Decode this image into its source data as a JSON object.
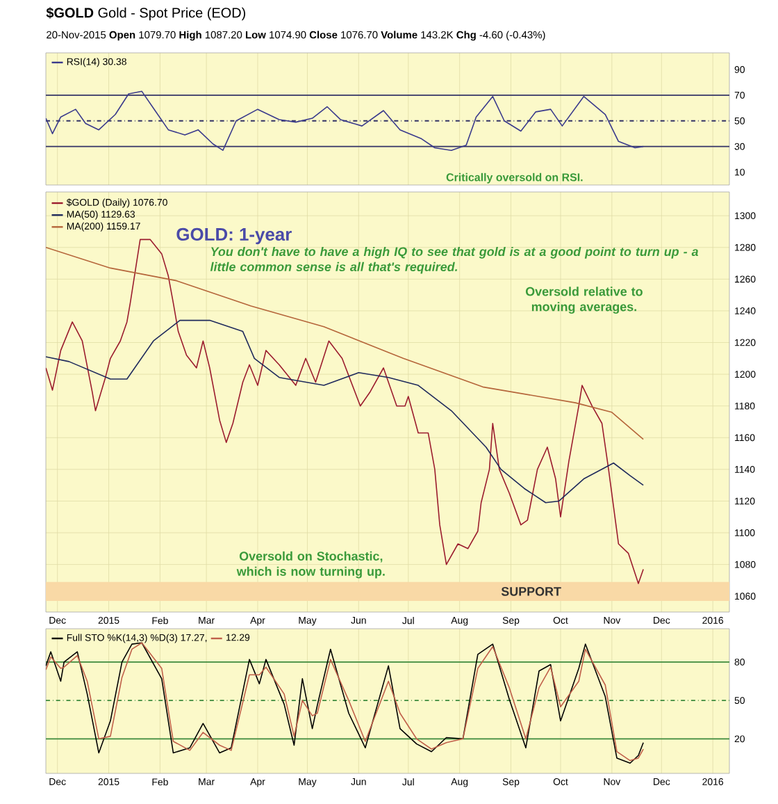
{
  "chart_data": [
    {
      "type": "line",
      "title": "**$GOLD** Gold - Spot Price (EOD)",
      "subtitle": "20-Nov-2015 **Open** 1079.70 **High** 1087.20 **Low** 1074.90 **Close** 1076.70 **Volume** 143.2K **Chg** -4.60 (-0.43%)",
      "xlim": [
        "2014-11-24",
        "2016-01-11"
      ],
      "ylim": [
        0,
        103
      ],
      "yticks": [
        10,
        30,
        50,
        70,
        90
      ],
      "xticks": [
        {
          "value": "2014-12-01",
          "label": null
        },
        {
          "value": "2015-01-01",
          "label": null
        },
        {
          "value": "2015-02-01",
          "label": null
        },
        {
          "value": "2015-03-01",
          "label": null
        },
        {
          "value": "2015-04-01",
          "label": null
        },
        {
          "value": "2015-05-01",
          "label": null
        },
        {
          "value": "2015-06-01",
          "label": null
        },
        {
          "value": "2015-07-01",
          "label": null
        },
        {
          "value": "2015-08-01",
          "label": null
        },
        {
          "value": "2015-09-01",
          "label": null
        },
        {
          "value": "2015-10-01",
          "label": null
        },
        {
          "value": "2015-11-01",
          "label": null
        },
        {
          "value": "2015-12-01",
          "label": null
        },
        {
          "value": "2016-01-01",
          "label": null
        }
      ],
      "tick_labels": "y",
      "grid": "x",
      "legend": "top left",
      "ref_lines": [
        {
          "axis": "y",
          "value": 70,
          "color": "#333366",
          "line_style": "solid"
        },
        {
          "axis": "y",
          "value": 30,
          "color": "#333366",
          "line_style": "solid"
        },
        {
          "axis": "y",
          "value": 50,
          "color": "#333366",
          "line_style": "dashed"
        }
      ],
      "annotations": [
        "Critically oversold on RSI."
      ],
      "series": [
        {
          "name": "RSI(14) 30.38",
          "color": "#3a3a8c",
          "x": [
            "2014-11-24",
            "2014-11-28",
            "2014-12-03",
            "2014-12-12",
            "2014-12-18",
            "2014-12-26",
            "2015-01-05",
            "2015-01-13",
            "2015-01-21",
            "2015-01-29",
            "2015-02-06",
            "2015-02-16",
            "2015-02-24",
            "2015-03-05",
            "2015-03-11",
            "2015-03-19",
            "2015-04-01",
            "2015-04-14",
            "2015-04-24",
            "2015-05-04",
            "2015-05-13",
            "2015-05-21",
            "2015-06-03",
            "2015-06-16",
            "2015-06-26",
            "2015-07-09",
            "2015-07-17",
            "2015-07-27",
            "2015-08-05",
            "2015-08-11",
            "2015-08-21",
            "2015-08-28",
            "2015-09-07",
            "2015-09-16",
            "2015-09-25",
            "2015-10-02",
            "2015-10-15",
            "2015-10-28",
            "2015-11-05",
            "2015-11-15",
            "2015-11-20"
          ],
          "values": [
            52,
            40,
            53,
            59,
            48,
            43,
            55,
            71,
            73,
            58,
            43,
            39,
            43,
            32,
            27,
            50,
            59,
            51,
            49,
            52,
            61,
            51,
            46,
            58,
            43,
            36,
            29,
            27,
            31,
            53,
            69,
            50,
            42,
            57,
            59,
            46,
            69,
            55,
            34,
            29,
            30
          ]
        }
      ]
    },
    {
      "type": "line",
      "xlim": [
        "2014-11-24",
        "2016-01-11"
      ],
      "ylim": [
        1050,
        1315
      ],
      "yticks": [
        1060,
        1080,
        1100,
        1120,
        1140,
        1160,
        1180,
        1200,
        1220,
        1240,
        1260,
        1280,
        1300
      ],
      "xticks": [
        {
          "value": "2014-12-01",
          "label": "Dec"
        },
        {
          "value": "2015-01-01",
          "label": "2015"
        },
        {
          "value": "2015-02-01",
          "label": "Feb"
        },
        {
          "value": "2015-03-01",
          "label": "Mar"
        },
        {
          "value": "2015-04-01",
          "label": "Apr"
        },
        {
          "value": "2015-05-01",
          "label": "May"
        },
        {
          "value": "2015-06-01",
          "label": "Jun"
        },
        {
          "value": "2015-07-01",
          "label": "Jul"
        },
        {
          "value": "2015-08-01",
          "label": "Aug"
        },
        {
          "value": "2015-09-01",
          "label": "Sep"
        },
        {
          "value": "2015-10-01",
          "label": "Oct"
        },
        {
          "value": "2015-11-01",
          "label": "Nov"
        },
        {
          "value": "2015-12-01",
          "label": "Dec"
        },
        {
          "value": "2016-01-01",
          "label": "2016"
        }
      ],
      "grid": true,
      "legend": "top left",
      "bands": [
        {
          "axis": "y",
          "from": 1057,
          "to": 1069,
          "label": "SUPPORT",
          "color": "#f9d9a6"
        }
      ],
      "annotations": [
        "GOLD: 1-year",
        "You don't have to have a high IQ to see that gold is at a good point to turn up - a little common sense is all that's required.",
        "Oversold relative to moving averages.",
        "Oversold on Stochastic, which is now turning up."
      ],
      "series": [
        {
          "name": "$GOLD (Daily) 1076.70",
          "color": "#9b1c2e",
          "x": [
            "2014-11-24",
            "2014-11-28",
            "2014-12-03",
            "2014-12-10",
            "2014-12-16",
            "2014-12-22",
            "2014-12-24",
            "2014-12-30",
            "2015-01-02",
            "2015-01-08",
            "2015-01-12",
            "2015-01-14",
            "2015-01-20",
            "2015-01-26",
            "2015-02-02",
            "2015-02-06",
            "2015-02-09",
            "2015-02-12",
            "2015-02-17",
            "2015-02-23",
            "2015-02-27",
            "2015-03-03",
            "2015-03-09",
            "2015-03-13",
            "2015-03-17",
            "2015-03-23",
            "2015-03-27",
            "2015-04-01",
            "2015-04-06",
            "2015-04-14",
            "2015-04-24",
            "2015-04-30",
            "2015-05-06",
            "2015-05-14",
            "2015-05-22",
            "2015-06-02",
            "2015-06-08",
            "2015-06-16",
            "2015-06-24",
            "2015-06-29",
            "2015-07-01",
            "2015-07-07",
            "2015-07-13",
            "2015-07-17",
            "2015-07-20",
            "2015-07-24",
            "2015-07-31",
            "2015-08-06",
            "2015-08-12",
            "2015-08-14",
            "2015-08-19",
            "2015-08-21",
            "2015-08-25",
            "2015-08-31",
            "2015-09-07",
            "2015-09-11",
            "2015-09-17",
            "2015-09-23",
            "2015-09-28",
            "2015-10-01",
            "2015-10-06",
            "2015-10-12",
            "2015-10-14",
            "2015-10-20",
            "2015-10-26",
            "2015-10-30",
            "2015-11-05",
            "2015-11-11",
            "2015-11-17",
            "2015-11-20"
          ],
          "values": [
            1204,
            1190,
            1215,
            1233,
            1221,
            1189,
            1177,
            1198,
            1210,
            1221,
            1233,
            1245,
            1285,
            1285,
            1276,
            1262,
            1245,
            1227,
            1212,
            1204,
            1221,
            1204,
            1171,
            1157,
            1169,
            1195,
            1206,
            1193,
            1215,
            1206,
            1193,
            1210,
            1195,
            1221,
            1210,
            1180,
            1189,
            1204,
            1180,
            1180,
            1186,
            1163,
            1163,
            1140,
            1105,
            1080,
            1093,
            1090,
            1101,
            1119,
            1140,
            1169,
            1140,
            1125,
            1105,
            1108,
            1140,
            1154,
            1134,
            1110,
            1145,
            1180,
            1193,
            1180,
            1169,
            1140,
            1093,
            1087,
            1068,
            1077
          ]
        },
        {
          "name": "MA(50) 1129.63",
          "color": "#1f2a5c",
          "x": [
            "2014-11-24",
            "2014-12-08",
            "2015-01-02",
            "2015-01-12",
            "2015-01-28",
            "2015-02-13",
            "2015-03-03",
            "2015-03-23",
            "2015-03-30",
            "2015-04-14",
            "2015-05-11",
            "2015-06-01",
            "2015-06-19",
            "2015-07-07",
            "2015-07-27",
            "2015-08-17",
            "2015-08-26",
            "2015-09-09",
            "2015-09-22",
            "2015-09-30",
            "2015-10-15",
            "2015-11-02",
            "2015-11-12",
            "2015-11-20"
          ],
          "values": [
            1211,
            1208,
            1197,
            1197,
            1221,
            1234,
            1234,
            1227,
            1210,
            1198,
            1193,
            1201,
            1198,
            1193,
            1177,
            1154,
            1140,
            1128,
            1119,
            1120,
            1134,
            1144,
            1136,
            1130
          ]
        },
        {
          "name": "MA(200) 1159.17",
          "color": "#b5653a",
          "x": [
            "2014-11-24",
            "2015-01-02",
            "2015-02-11",
            "2015-03-28",
            "2015-05-11",
            "2015-06-28",
            "2015-08-15",
            "2015-10-10",
            "2015-11-01",
            "2015-11-20"
          ],
          "values": [
            1280,
            1267,
            1259,
            1243,
            1230,
            1210,
            1192,
            1182,
            1176,
            1159
          ]
        }
      ]
    },
    {
      "type": "line",
      "xlim": [
        "2014-11-24",
        "2016-01-11"
      ],
      "ylim": [
        -7,
        106
      ],
      "yticks": [
        20,
        50,
        80
      ],
      "grid": "x",
      "xticks": [
        {
          "value": "2014-12-01",
          "label": "Dec"
        },
        {
          "value": "2015-01-01",
          "label": "2015"
        },
        {
          "value": "2015-02-01",
          "label": "Feb"
        },
        {
          "value": "2015-03-01",
          "label": "Mar"
        },
        {
          "value": "2015-04-01",
          "label": "Apr"
        },
        {
          "value": "2015-05-01",
          "label": "May"
        },
        {
          "value": "2015-06-01",
          "label": "Jun"
        },
        {
          "value": "2015-07-01",
          "label": "Jul"
        },
        {
          "value": "2015-08-01",
          "label": "Aug"
        },
        {
          "value": "2015-09-01",
          "label": "Sep"
        },
        {
          "value": "2015-10-01",
          "label": "Oct"
        },
        {
          "value": "2015-11-01",
          "label": "Nov"
        },
        {
          "value": "2015-12-01",
          "label": "Dec"
        },
        {
          "value": "2016-01-01",
          "label": "2016"
        }
      ],
      "legend": "top left",
      "ref_lines": [
        {
          "axis": "y",
          "value": 80,
          "color": "#3c8a3c",
          "line_style": "solid"
        },
        {
          "axis": "y",
          "value": 20,
          "color": "#3c8a3c",
          "line_style": "solid"
        },
        {
          "axis": "y",
          "value": 50,
          "color": "#3c8a3c",
          "line_style": "dashed"
        }
      ],
      "series": [
        {
          "name": "Full STO %K(14,3) %D(3) 17.27,",
          "color": "#000000",
          "x": [
            "2014-11-24",
            "2014-11-27",
            "2014-12-03",
            "2014-12-05",
            "2014-12-13",
            "2014-12-19",
            "2014-12-26",
            "2015-01-02",
            "2015-01-09",
            "2015-01-15",
            "2015-01-21",
            "2015-02-02",
            "2015-02-09",
            "2015-02-19",
            "2015-02-27",
            "2015-03-09",
            "2015-03-16",
            "2015-03-27",
            "2015-04-02",
            "2015-04-06",
            "2015-04-17",
            "2015-04-23",
            "2015-04-28",
            "2015-05-04",
            "2015-05-07",
            "2015-05-15",
            "2015-05-26",
            "2015-06-05",
            "2015-06-19",
            "2015-06-26",
            "2015-07-06",
            "2015-07-15",
            "2015-07-24",
            "2015-08-03",
            "2015-08-12",
            "2015-08-21",
            "2015-08-31",
            "2015-09-10",
            "2015-09-18",
            "2015-09-25",
            "2015-10-01",
            "2015-10-12",
            "2015-10-16",
            "2015-10-28",
            "2015-11-04",
            "2015-11-12",
            "2015-11-17",
            "2015-11-20"
          ],
          "values": [
            77,
            88,
            65,
            80,
            88,
            55,
            9,
            34,
            80,
            94,
            95,
            67,
            9,
            13,
            32,
            9,
            13,
            82,
            63,
            82,
            47,
            15,
            67,
            28,
            46,
            90,
            40,
            13,
            77,
            28,
            16,
            10,
            21,
            20,
            86,
            94,
            51,
            13,
            73,
            78,
            34,
            75,
            94,
            53,
            5,
            1,
            7,
            17
          ]
        },
        {
          "name": "12.29",
          "color": "#c0604a",
          "x": [
            "2014-11-24",
            "2014-11-27",
            "2014-12-03",
            "2014-12-05",
            "2014-12-13",
            "2014-12-19",
            "2014-12-26",
            "2015-01-02",
            "2015-01-09",
            "2015-01-15",
            "2015-01-21",
            "2015-02-02",
            "2015-02-09",
            "2015-02-19",
            "2015-02-27",
            "2015-03-09",
            "2015-03-16",
            "2015-03-27",
            "2015-04-02",
            "2015-04-06",
            "2015-04-17",
            "2015-04-23",
            "2015-04-28",
            "2015-05-04",
            "2015-05-07",
            "2015-05-15",
            "2015-05-26",
            "2015-06-05",
            "2015-06-19",
            "2015-06-26",
            "2015-07-06",
            "2015-07-15",
            "2015-07-24",
            "2015-08-03",
            "2015-08-12",
            "2015-08-21",
            "2015-08-31",
            "2015-09-10",
            "2015-09-18",
            "2015-09-25",
            "2015-10-01",
            "2015-10-12",
            "2015-10-16",
            "2015-10-28",
            "2015-11-04",
            "2015-11-12",
            "2015-11-17",
            "2015-11-20"
          ],
          "values": [
            74,
            84,
            75,
            76,
            85,
            65,
            20,
            22,
            68,
            90,
            95,
            75,
            18,
            11,
            25,
            15,
            11,
            70,
            70,
            76,
            55,
            22,
            50,
            38,
            40,
            82,
            50,
            18,
            65,
            40,
            20,
            12,
            17,
            20,
            75,
            92,
            60,
            20,
            60,
            76,
            45,
            65,
            90,
            62,
            10,
            3,
            5,
            12
          ]
        }
      ]
    }
  ]
}
